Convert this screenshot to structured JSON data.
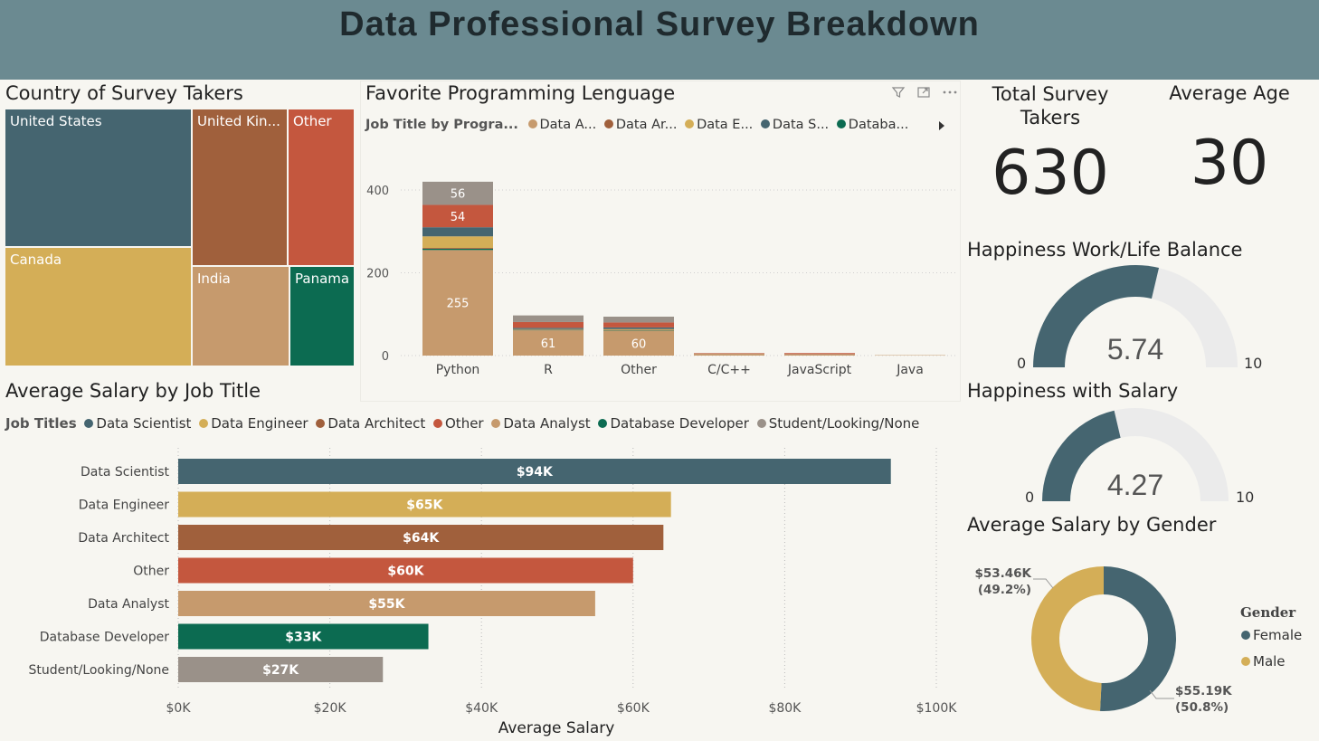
{
  "header": {
    "title": "Data Professional Survey Breakdown"
  },
  "country": {
    "title": "Country of Survey Takers",
    "cells": [
      {
        "label": "United States",
        "color": "#456570"
      },
      {
        "label": "United Kin...",
        "color": "#a0603c"
      },
      {
        "label": "Other",
        "color": "#c4573e"
      },
      {
        "label": "Canada",
        "color": "#d4ae57"
      },
      {
        "label": "India",
        "color": "#c69a6d"
      },
      {
        "label": "Panama",
        "color": "#0c6b51"
      }
    ]
  },
  "language": {
    "title": "Favorite Programming Lenguage",
    "legend_title": "Job Title by Progra...",
    "legend": [
      {
        "label": "Data A...",
        "color": "#c69a6d"
      },
      {
        "label": "Data Ar...",
        "color": "#a0603c"
      },
      {
        "label": "Data E...",
        "color": "#d4ae57"
      },
      {
        "label": "Data S...",
        "color": "#456570"
      },
      {
        "label": "Databa...",
        "color": "#0c6b51"
      }
    ],
    "icons": [
      "filter-icon",
      "focus-mode-icon",
      "more-options-icon"
    ]
  },
  "chart_data": [
    {
      "type": "bar",
      "stacked": true,
      "title": "Favorite Programming Lenguage",
      "categories": [
        "Python",
        "R",
        "Other",
        "C/C++",
        "JavaScript",
        "Java"
      ],
      "ylim": [
        0,
        400
      ],
      "yticks": [
        "0",
        "200",
        "400"
      ],
      "grid": true,
      "series": [
        {
          "name": "Data Analyst",
          "color": "#c69a6d",
          "values": [
            255,
            61,
            60,
            4,
            3,
            1
          ],
          "labels": [
            "255",
            "61",
            "60",
            "",
            "",
            ""
          ]
        },
        {
          "name": "Database Developer",
          "color": "#0c6b51",
          "values": [
            3,
            1,
            1,
            0,
            0,
            0
          ],
          "labels": [
            "",
            "",
            "",
            "",
            "",
            ""
          ]
        },
        {
          "name": "Data Architect",
          "color": "#a0603c",
          "values": [
            2,
            1,
            1,
            1,
            1,
            0
          ],
          "labels": [
            "",
            "",
            "",
            "",
            "",
            ""
          ]
        },
        {
          "name": "Data Engineer",
          "color": "#d4ae57",
          "values": [
            28,
            1,
            2,
            0,
            0,
            0
          ],
          "labels": [
            "",
            "",
            "",
            "",
            "",
            ""
          ]
        },
        {
          "name": "Data Scientist",
          "color": "#456570",
          "values": [
            22,
            3,
            4,
            0,
            0,
            0
          ],
          "labels": [
            "",
            "",
            "",
            "",
            "",
            ""
          ]
        },
        {
          "name": "Other",
          "color": "#c4573e",
          "values": [
            54,
            14,
            12,
            1,
            2,
            0
          ],
          "labels": [
            "54",
            "",
            "",
            "",
            "",
            ""
          ]
        },
        {
          "name": "Student/Looking/None",
          "color": "#9a9189",
          "values": [
            56,
            16,
            14,
            0,
            0,
            0
          ],
          "labels": [
            "56",
            "",
            "",
            "",
            "",
            ""
          ]
        }
      ]
    },
    {
      "type": "bar",
      "orientation": "horizontal",
      "title": "Average Salary by Job Title",
      "xlabel": "Average Salary",
      "categories": [
        "Data Scientist",
        "Data Engineer",
        "Data Architect",
        "Other",
        "Data Analyst",
        "Database Developer",
        "Student/Looking/None"
      ],
      "values": [
        94,
        65,
        64,
        60,
        55,
        33,
        27
      ],
      "value_labels": [
        "$94K",
        "$65K",
        "$64K",
        "$60K",
        "$55K",
        "$33K",
        "$27K"
      ],
      "colors": [
        "#456570",
        "#d4ae57",
        "#a0603c",
        "#c4573e",
        "#c69a6d",
        "#0c6b51",
        "#9a9189"
      ],
      "xlim": [
        0,
        100
      ],
      "xticks": [
        "$0K",
        "$20K",
        "$40K",
        "$60K",
        "$80K",
        "$100K"
      ]
    },
    {
      "type": "pie",
      "donut": true,
      "title": "Average Salary by Gender",
      "labels": [
        "Female",
        "Male"
      ],
      "values": [
        55.19,
        53.46
      ],
      "colors": [
        "#456570",
        "#d4ae57"
      ],
      "data_labels": [
        {
          "value": "$55.19K",
          "pct": "(50.8%)"
        },
        {
          "value": "$53.46K",
          "pct": "(49.2%)"
        }
      ]
    }
  ],
  "salary": {
    "title": "Average Salary by Job Title",
    "legend_title": "Job Titles",
    "legend": [
      {
        "label": "Data Scientist",
        "color": "#456570"
      },
      {
        "label": "Data Engineer",
        "color": "#d4ae57"
      },
      {
        "label": "Data Architect",
        "color": "#a0603c"
      },
      {
        "label": "Other",
        "color": "#c4573e"
      },
      {
        "label": "Data Analyst",
        "color": "#c69a6d"
      },
      {
        "label": "Database Developer",
        "color": "#0c6b51"
      },
      {
        "label": "Student/Looking/None",
        "color": "#9a9189"
      }
    ]
  },
  "kpi": {
    "total_label": "Total Survey Takers",
    "total_value": "630",
    "age_label": "Average Age",
    "age_value": "30"
  },
  "gauges": [
    {
      "title": "Happiness Work/Life Balance",
      "value": 5.74,
      "value_label": "5.74",
      "min": "0",
      "max": "10",
      "min_num": 0,
      "max_num": 10,
      "fill": "#456570",
      "track": "#ebebeb"
    },
    {
      "title": "Happiness with Salary",
      "value": 4.27,
      "value_label": "4.27",
      "min": "0",
      "max": "10",
      "min_num": 0,
      "max_num": 10,
      "fill": "#456570",
      "track": "#ebebeb"
    }
  ],
  "gender": {
    "title": "Average Salary by Gender",
    "legend_title": "Gender",
    "legend": [
      {
        "label": "Female",
        "color": "#456570"
      },
      {
        "label": "Male",
        "color": "#d4ae57"
      }
    ]
  }
}
